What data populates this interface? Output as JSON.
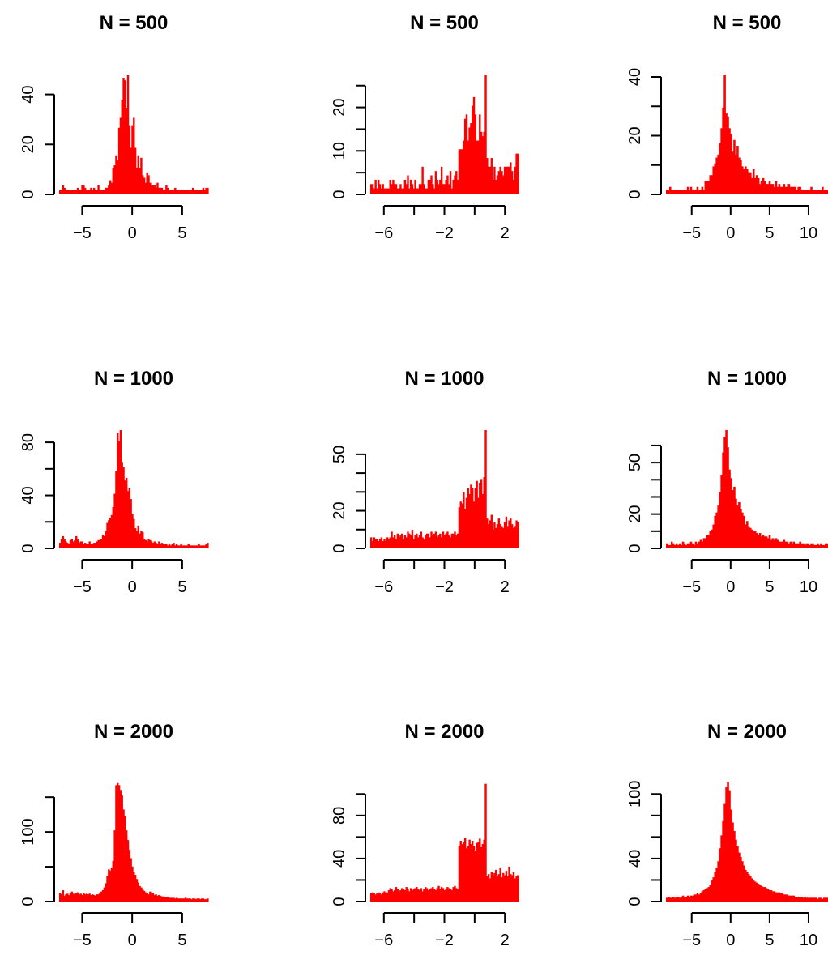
{
  "bar_color": "#ff0000",
  "chart_data": [
    {
      "type": "bar",
      "title": "N = 500",
      "xlim": [
        -7.3,
        7.6
      ],
      "ylim": [
        0,
        47
      ],
      "xticks": [
        -5,
        0,
        5
      ],
      "xtick_labels": [
        "−5",
        "0",
        "5"
      ],
      "yticks": [
        0,
        20,
        40
      ],
      "ytick_labels": [
        "0",
        "20",
        "40"
      ],
      "values": [
        1,
        1,
        3,
        2,
        1,
        1,
        1,
        1,
        1,
        1,
        1,
        1,
        2,
        1,
        1,
        3,
        3,
        2,
        1,
        1,
        1,
        2,
        1,
        2,
        1,
        1,
        3,
        1,
        1,
        1,
        1,
        2,
        2,
        3,
        5,
        4,
        10,
        11,
        15,
        13,
        26,
        30,
        37,
        46,
        45,
        34,
        47,
        27,
        18,
        27,
        30,
        18,
        10,
        15,
        10,
        14,
        7,
        6,
        4,
        8,
        7,
        4,
        3,
        3,
        3,
        2,
        4,
        2,
        2,
        2,
        1,
        1,
        3,
        2,
        1,
        1,
        1,
        1,
        2,
        1,
        1,
        1,
        1,
        1,
        1,
        1,
        1,
        1,
        1,
        1,
        2,
        1,
        1,
        1,
        1,
        1,
        1,
        2,
        1,
        2,
        2
      ]
    },
    {
      "type": "bar",
      "title": "N = 500",
      "xlim": [
        -6.9,
        2.9
      ],
      "ylim": [
        0,
        27
      ],
      "xticks": [
        -6,
        -4,
        -2,
        0,
        2
      ],
      "xtick_labels": [
        "−6",
        "",
        "−2",
        "",
        "2"
      ],
      "yticks": [
        0,
        5,
        10,
        15,
        20,
        25
      ],
      "ytick_labels": [
        "0",
        "",
        "10",
        "",
        "20",
        ""
      ],
      "values": [
        2,
        2,
        1,
        3,
        1,
        3,
        2,
        1,
        2,
        1,
        1,
        1,
        1,
        3,
        2,
        3,
        2,
        2,
        1,
        1,
        2,
        1,
        1,
        3,
        2,
        4,
        1,
        3,
        2,
        1,
        3,
        1,
        1,
        2,
        2,
        6,
        2,
        1,
        1,
        3,
        3,
        4,
        2,
        1,
        5,
        3,
        2,
        3,
        6,
        2,
        2,
        3,
        4,
        2,
        5,
        1,
        3,
        4,
        5,
        3,
        10,
        10,
        10,
        12,
        17,
        18,
        12,
        15,
        16,
        20,
        22,
        18,
        12,
        12,
        18,
        14,
        13,
        14,
        27,
        8,
        6,
        6,
        8,
        3,
        6,
        3,
        4,
        5,
        6,
        5,
        4,
        6,
        6,
        6,
        6,
        7,
        5,
        3,
        6,
        9,
        9
      ]
    },
    {
      "type": "bar",
      "title": "N = 500",
      "xlim": [
        -8.3,
        12.5
      ],
      "ylim": [
        0,
        40
      ],
      "xticks": [
        -5,
        0,
        5,
        10
      ],
      "xtick_labels": [
        "−5",
        "0",
        "5",
        "10"
      ],
      "yticks": [
        0,
        10,
        20,
        30,
        40
      ],
      "ytick_labels": [
        "0",
        "",
        "20",
        "",
        "40"
      ],
      "values": [
        1,
        1,
        2,
        1,
        1,
        1,
        1,
        1,
        1,
        1,
        1,
        1,
        1,
        2,
        1,
        2,
        1,
        1,
        1,
        2,
        1,
        1,
        2,
        1,
        4,
        4,
        4,
        6,
        6,
        9,
        10,
        12,
        13,
        17,
        22,
        29,
        40,
        27,
        26,
        22,
        20,
        14,
        18,
        13,
        16,
        12,
        11,
        9,
        8,
        9,
        8,
        7,
        7,
        5,
        8,
        5,
        6,
        5,
        3,
        4,
        5,
        4,
        3,
        3,
        4,
        3,
        3,
        2,
        4,
        2,
        3,
        2,
        2,
        3,
        2,
        2,
        3,
        2,
        2,
        2,
        2,
        1,
        2,
        2,
        1,
        1,
        1,
        1,
        1,
        1,
        2,
        1,
        1,
        1,
        1,
        1,
        1,
        2,
        1,
        1,
        1
      ]
    },
    {
      "type": "bar",
      "title": "N = 1000",
      "xlim": [
        -7.3,
        7.6
      ],
      "ylim": [
        0,
        88
      ],
      "xticks": [
        -5,
        0,
        5
      ],
      "xtick_labels": [
        "−5",
        "0",
        "5"
      ],
      "yticks": [
        0,
        20,
        40,
        60,
        80
      ],
      "ytick_labels": [
        "0",
        "",
        "40",
        "",
        "80"
      ],
      "values": [
        3,
        6,
        8,
        6,
        4,
        3,
        2,
        5,
        6,
        4,
        5,
        8,
        6,
        3,
        4,
        4,
        2,
        3,
        2,
        2,
        4,
        2,
        2,
        3,
        3,
        4,
        5,
        5,
        6,
        9,
        8,
        12,
        18,
        20,
        22,
        24,
        30,
        40,
        57,
        86,
        80,
        88,
        64,
        60,
        50,
        52,
        42,
        44,
        36,
        25,
        21,
        14,
        12,
        16,
        10,
        12,
        11,
        6,
        5,
        4,
        6,
        5,
        4,
        3,
        4,
        3,
        2,
        4,
        2,
        3,
        2,
        2,
        2,
        1,
        2,
        1,
        2,
        3,
        1,
        2,
        1,
        1,
        2,
        1,
        1,
        1,
        1,
        2,
        1,
        1,
        1,
        1,
        1,
        1,
        2,
        1,
        1,
        1,
        1,
        2,
        3
      ]
    },
    {
      "type": "bar",
      "title": "N = 1000",
      "xlim": [
        -6.9,
        2.9
      ],
      "ylim": [
        0,
        62
      ],
      "xticks": [
        -6,
        -4,
        -2,
        0,
        2
      ],
      "xtick_labels": [
        "−6",
        "",
        "−2",
        "",
        "2"
      ],
      "yticks": [
        0,
        10,
        20,
        30,
        40,
        50
      ],
      "ytick_labels": [
        "0",
        "",
        "20",
        "",
        "",
        "50"
      ],
      "values": [
        5,
        3,
        5,
        4,
        4,
        3,
        4,
        5,
        3,
        4,
        3,
        5,
        4,
        5,
        8,
        5,
        6,
        4,
        7,
        5,
        6,
        7,
        4,
        6,
        5,
        8,
        7,
        6,
        9,
        4,
        6,
        7,
        5,
        6,
        8,
        5,
        4,
        6,
        7,
        7,
        5,
        8,
        6,
        7,
        8,
        5,
        6,
        7,
        5,
        8,
        6,
        7,
        8,
        6,
        5,
        7,
        7,
        8,
        6,
        7,
        21,
        24,
        23,
        29,
        20,
        26,
        31,
        28,
        33,
        31,
        24,
        31,
        35,
        26,
        34,
        36,
        28,
        37,
        62,
        15,
        12,
        14,
        17,
        9,
        13,
        10,
        12,
        15,
        12,
        11,
        10,
        13,
        16,
        11,
        14,
        15,
        12,
        10,
        11,
        14,
        13
      ]
    },
    {
      "type": "bar",
      "title": "N = 1000",
      "xlim": [
        -8.3,
        12.5
      ],
      "ylim": [
        0,
        68
      ],
      "xticks": [
        -5,
        0,
        5,
        10
      ],
      "xtick_labels": [
        "−5",
        "0",
        "5",
        "10"
      ],
      "yticks": [
        0,
        10,
        20,
        30,
        40,
        50,
        60
      ],
      "ytick_labels": [
        "0",
        "",
        "20",
        "",
        "",
        "50",
        ""
      ],
      "values": [
        2,
        1,
        1,
        3,
        2,
        1,
        2,
        1,
        2,
        1,
        3,
        2,
        1,
        2,
        2,
        3,
        2,
        1,
        3,
        2,
        3,
        4,
        3,
        5,
        5,
        7,
        7,
        9,
        10,
        13,
        18,
        20,
        24,
        32,
        42,
        55,
        64,
        68,
        58,
        45,
        40,
        33,
        35,
        28,
        24,
        26,
        22,
        20,
        18,
        13,
        15,
        12,
        11,
        10,
        9,
        9,
        8,
        7,
        8,
        6,
        7,
        6,
        6,
        5,
        7,
        4,
        5,
        4,
        5,
        4,
        3,
        3,
        3,
        4,
        3,
        3,
        2,
        3,
        2,
        3,
        2,
        2,
        2,
        3,
        2,
        2,
        1,
        2,
        2,
        1,
        2,
        2,
        1,
        1,
        2,
        1,
        2,
        1,
        1,
        2,
        2
      ]
    },
    {
      "type": "bar",
      "title": "N = 2000",
      "xlim": [
        -7.3,
        7.6
      ],
      "ylim": [
        0,
        170
      ],
      "xticks": [
        -5,
        0,
        5
      ],
      "xtick_labels": [
        "−5",
        "0",
        "5"
      ],
      "yticks": [
        0,
        50,
        100,
        150
      ],
      "ytick_labels": [
        "0",
        "",
        "100",
        ""
      ],
      "values": [
        10,
        8,
        14,
        6,
        8,
        9,
        7,
        10,
        12,
        9,
        8,
        10,
        11,
        8,
        9,
        7,
        10,
        8,
        9,
        8,
        9,
        7,
        8,
        7,
        6,
        8,
        8,
        10,
        12,
        14,
        18,
        24,
        34,
        44,
        42,
        46,
        56,
        100,
        165,
        168,
        165,
        158,
        150,
        130,
        120,
        100,
        86,
        72,
        60,
        48,
        40,
        36,
        30,
        25,
        20,
        18,
        15,
        13,
        11,
        10,
        8,
        12,
        9,
        10,
        7,
        8,
        6,
        7,
        6,
        5,
        5,
        4,
        4,
        4,
        3,
        3,
        3,
        3,
        2,
        3,
        2,
        2,
        2,
        2,
        2,
        3,
        2,
        2,
        2,
        1,
        2,
        2,
        1,
        2,
        2,
        1,
        2,
        2,
        1,
        1,
        2
      ]
    },
    {
      "type": "bar",
      "title": "N = 2000",
      "xlim": [
        -6.9,
        2.9
      ],
      "ylim": [
        0,
        110
      ],
      "xticks": [
        -6,
        -4,
        -2,
        0,
        2
      ],
      "xtick_labels": [
        "−6",
        "",
        "−2",
        "",
        "2"
      ],
      "yticks": [
        0,
        20,
        40,
        60,
        80,
        100
      ],
      "ytick_labels": [
        "0",
        "",
        "40",
        "",
        "80",
        ""
      ],
      "values": [
        6,
        7,
        6,
        5,
        6,
        7,
        6,
        5,
        7,
        8,
        6,
        7,
        9,
        11,
        10,
        8,
        9,
        12,
        10,
        8,
        9,
        11,
        10,
        9,
        12,
        10,
        8,
        11,
        9,
        10,
        11,
        12,
        10,
        9,
        11,
        8,
        10,
        12,
        11,
        9,
        10,
        11,
        12,
        10,
        9,
        11,
        13,
        10,
        12,
        11,
        9,
        10,
        12,
        11,
        10,
        9,
        12,
        13,
        11,
        10,
        50,
        55,
        52,
        54,
        58,
        48,
        50,
        56,
        52,
        55,
        50,
        46,
        53,
        54,
        57,
        49,
        52,
        56,
        108,
        22,
        24,
        20,
        26,
        23,
        25,
        28,
        22,
        24,
        30,
        21,
        25,
        23,
        27,
        22,
        31,
        24,
        23,
        26,
        20,
        22,
        23
      ]
    },
    {
      "type": "bar",
      "title": "N = 2000",
      "xlim": [
        -8.3,
        12.5
      ],
      "ylim": [
        0,
        110
      ],
      "xticks": [
        -5,
        0,
        5,
        10
      ],
      "xtick_labels": [
        "−5",
        "0",
        "5",
        "10"
      ],
      "yticks": [
        0,
        20,
        40,
        60,
        80,
        100
      ],
      "ytick_labels": [
        "0",
        "",
        "40",
        "",
        "",
        "100"
      ],
      "values": [
        2,
        3,
        2,
        2,
        3,
        2,
        3,
        3,
        2,
        3,
        4,
        3,
        3,
        4,
        3,
        4,
        4,
        5,
        5,
        6,
        5,
        6,
        8,
        9,
        10,
        11,
        12,
        14,
        18,
        21,
        26,
        30,
        36,
        48,
        60,
        74,
        90,
        105,
        110,
        102,
        84,
        72,
        64,
        56,
        50,
        44,
        40,
        36,
        32,
        28,
        26,
        24,
        22,
        20,
        18,
        17,
        16,
        15,
        14,
        13,
        12,
        12,
        11,
        10,
        9,
        9,
        8,
        8,
        7,
        7,
        7,
        6,
        6,
        5,
        5,
        5,
        4,
        4,
        4,
        4,
        3,
        3,
        3,
        3,
        3,
        2,
        3,
        2,
        2,
        2,
        2,
        2,
        2,
        2,
        1,
        2,
        2,
        1,
        2,
        2,
        2
      ]
    }
  ]
}
